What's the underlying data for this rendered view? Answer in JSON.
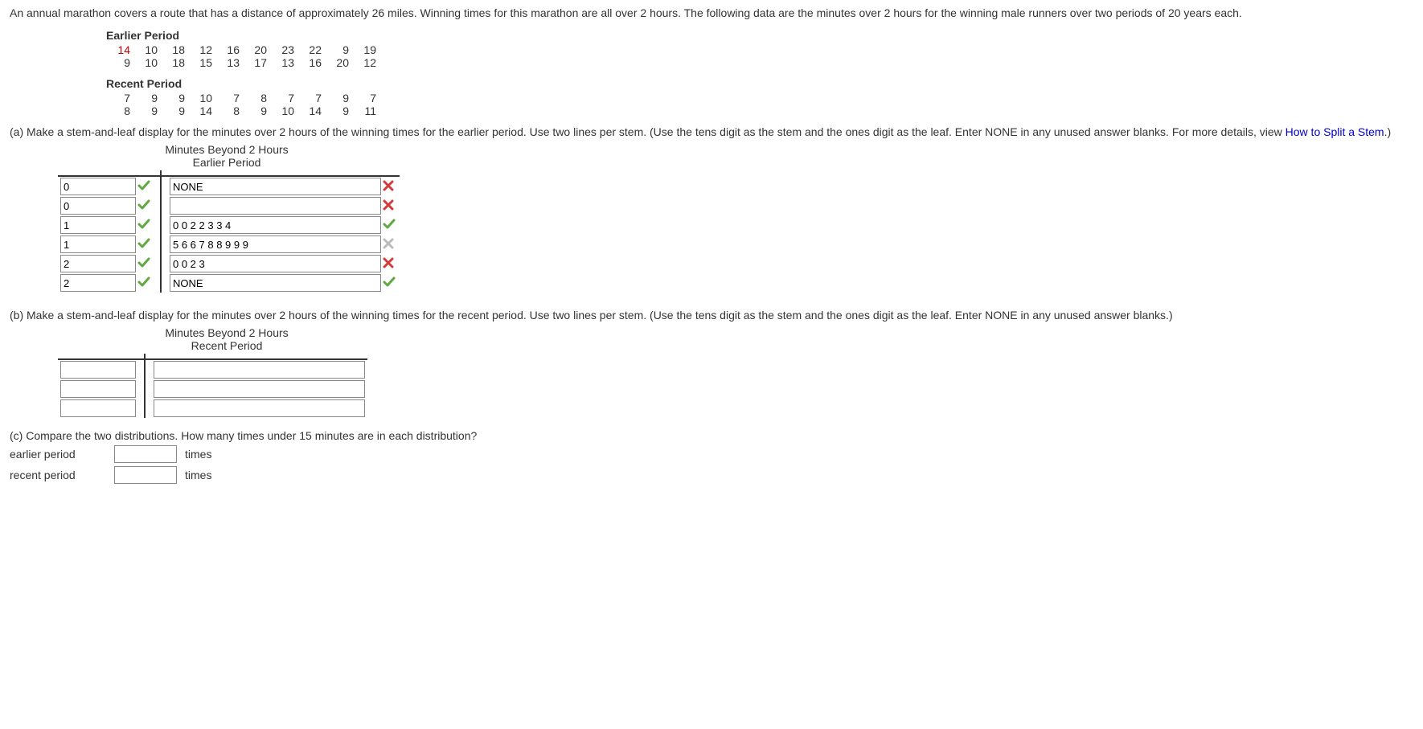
{
  "intro": "An annual marathon covers a route that has a distance of approximately 26 miles. Winning times for this marathon are all over 2 hours. The following data are the minutes over 2 hours for the winning male runners over two periods of 20 years each.",
  "earlier": {
    "label": "Earlier Period",
    "row1": [
      "14",
      "10",
      "18",
      "12",
      "16",
      "20",
      "23",
      "22",
      "9",
      "19"
    ],
    "row2": [
      "9",
      "10",
      "18",
      "15",
      "13",
      "17",
      "13",
      "16",
      "20",
      "12"
    ],
    "highlight_index": 0
  },
  "recent": {
    "label": "Recent Period",
    "row1": [
      "7",
      "9",
      "9",
      "10",
      "7",
      "8",
      "7",
      "7",
      "9",
      "7"
    ],
    "row2": [
      "8",
      "9",
      "9",
      "14",
      "8",
      "9",
      "10",
      "14",
      "9",
      "11"
    ]
  },
  "partA": {
    "text_before": "(a) Make a stem-and-leaf display for the minutes over 2 hours of the winning times for the earlier period. Use two lines per stem. (Use the tens digit as the stem and the ones digit as the leaf. Enter NONE in any unused answer blanks. For more details, view ",
    "link": "How to Split a Stem",
    "text_after": ".)",
    "title1": "Minutes Beyond 2 Hours",
    "title2": "Earlier Period",
    "rows": [
      {
        "stem": "0",
        "stem_fb": "check",
        "leaf": "NONE",
        "leaf_fb": "cross"
      },
      {
        "stem": "0",
        "stem_fb": "check",
        "leaf": "",
        "leaf_fb": "cross"
      },
      {
        "stem": "1",
        "stem_fb": "check",
        "leaf": "0 0 2 2 3 3 4",
        "leaf_fb": "check"
      },
      {
        "stem": "1",
        "stem_fb": "check",
        "leaf": "5 6 6 7 8 8 9 9 9",
        "leaf_fb": "grey-cross"
      },
      {
        "stem": "2",
        "stem_fb": "check",
        "leaf": "0 0 2 3",
        "leaf_fb": "cross"
      },
      {
        "stem": "2",
        "stem_fb": "check",
        "leaf": "NONE",
        "leaf_fb": "check"
      }
    ]
  },
  "partB": {
    "text": "(b) Make a stem-and-leaf display for the minutes over 2 hours of the winning times for the recent period. Use two lines per stem. (Use the tens digit as the stem and the ones digit as the leaf. Enter NONE in any unused answer blanks.)",
    "title1": "Minutes Beyond 2 Hours",
    "title2": "Recent Period",
    "rows_count": 3
  },
  "partC": {
    "text": "(c) Compare the two distributions. How many times under 15 minutes are in each distribution?",
    "row1_label": "earlier period",
    "row2_label": "recent period",
    "unit": "times"
  }
}
